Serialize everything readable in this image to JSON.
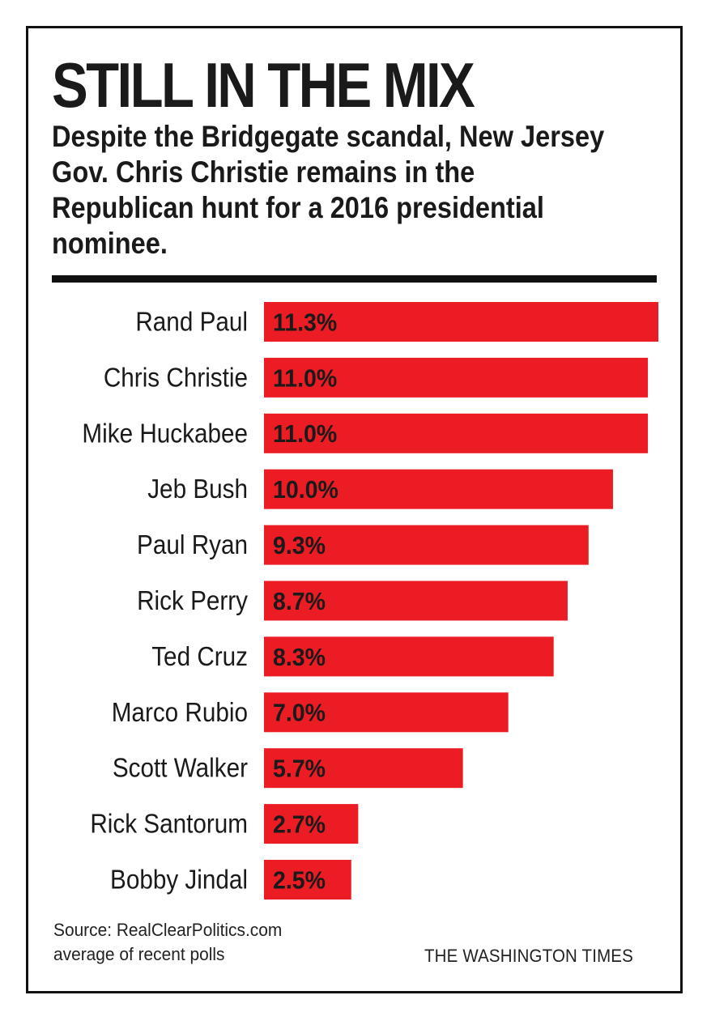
{
  "chart_data": {
    "type": "bar",
    "orientation": "horizontal",
    "title": "STILL IN THE MIX",
    "subtitle": "Despite the Bridgegate scandal, New Jersey Gov. Chris Christie remains in the Republican hunt for a 2016 presidential nominee.",
    "categories": [
      "Rand Paul",
      "Chris Christie",
      "Mike Huckabee",
      "Jeb Bush",
      "Paul Ryan",
      "Rick Perry",
      "Ted Cruz",
      "Marco Rubio",
      "Scott Walker",
      "Rick Santorum",
      "Bobby Jindal"
    ],
    "values": [
      11.3,
      11.0,
      11.0,
      10.0,
      9.3,
      8.7,
      8.3,
      7.0,
      5.7,
      2.7,
      2.5
    ],
    "value_labels": [
      "11.3%",
      "11.0%",
      "11.0%",
      "10.0%",
      "9.3%",
      "8.7%",
      "8.3%",
      "7.0%",
      "5.7%",
      "2.7%",
      "2.5%"
    ],
    "xlim": [
      0,
      11.3
    ],
    "grid": false,
    "legend": "none",
    "bar_color": "#ec1c24",
    "label_color": "#1a1a1a"
  },
  "footer": {
    "source_line1": "Source: RealClearPolitics.com",
    "source_line2": "average of recent polls",
    "credit": "THE WASHINGTON TIMES"
  }
}
